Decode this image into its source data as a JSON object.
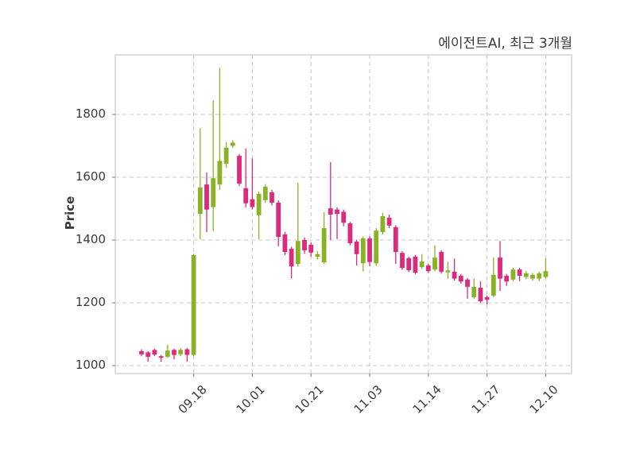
{
  "chart_data": {
    "type": "candlestick",
    "title": "에이전트AI, 최근 3개월",
    "ylabel": "Price",
    "xlabel": "",
    "ylim": [
      975,
      1990
    ],
    "yticks": [
      1000,
      1200,
      1400,
      1600,
      1800
    ],
    "xticks": [
      {
        "label": "09.18",
        "index": 8
      },
      {
        "label": "10.01",
        "index": 17
      },
      {
        "label": "10.21",
        "index": 26
      },
      {
        "label": "11.03",
        "index": 35
      },
      {
        "label": "11.14",
        "index": 44
      },
      {
        "label": "11.27",
        "index": 53
      },
      {
        "label": "12.10",
        "index": 62
      }
    ],
    "grid": true,
    "legend": "none",
    "up_color": "#8bb227",
    "down_color": "#dc2a7c",
    "candles_format": [
      "open",
      "high",
      "low",
      "close"
    ],
    "candles": [
      [
        1046,
        1052,
        1030,
        1036
      ],
      [
        1042,
        1046,
        1012,
        1028
      ],
      [
        1050,
        1054,
        1030,
        1035
      ],
      [
        1030,
        1034,
        1012,
        1025
      ],
      [
        1028,
        1066,
        1024,
        1048
      ],
      [
        1050,
        1054,
        1020,
        1034
      ],
      [
        1036,
        1056,
        1030,
        1050
      ],
      [
        1052,
        1056,
        1012,
        1034
      ],
      [
        1034,
        1356,
        1030,
        1352
      ],
      [
        1483,
        1756,
        1402,
        1567
      ],
      [
        1577,
        1615,
        1425,
        1497
      ],
      [
        1505,
        1845,
        1428,
        1597
      ],
      [
        1577,
        1948,
        1560,
        1652
      ],
      [
        1643,
        1712,
        1630,
        1694
      ],
      [
        1700,
        1718,
        1694,
        1710
      ],
      [
        1668,
        1674,
        1572,
        1580
      ],
      [
        1565,
        1691,
        1504,
        1517
      ],
      [
        1530,
        1660,
        1497,
        1505
      ],
      [
        1479,
        1554,
        1403,
        1547
      ],
      [
        1527,
        1578,
        1518,
        1570
      ],
      [
        1552,
        1560,
        1510,
        1519
      ],
      [
        1519,
        1526,
        1380,
        1410
      ],
      [
        1418,
        1426,
        1352,
        1362
      ],
      [
        1372,
        1378,
        1278,
        1316
      ],
      [
        1324,
        1582,
        1315,
        1397
      ],
      [
        1400,
        1408,
        1356,
        1367
      ],
      [
        1385,
        1392,
        1347,
        1360
      ],
      [
        1347,
        1364,
        1338,
        1355
      ],
      [
        1329,
        1489,
        1324,
        1438
      ],
      [
        1501,
        1648,
        1400,
        1481
      ],
      [
        1497,
        1504,
        1403,
        1483
      ],
      [
        1490,
        1497,
        1444,
        1455
      ],
      [
        1453,
        1458,
        1383,
        1390
      ],
      [
        1395,
        1401,
        1319,
        1355
      ],
      [
        1326,
        1412,
        1300,
        1405
      ],
      [
        1405,
        1412,
        1316,
        1330
      ],
      [
        1326,
        1438,
        1318,
        1430
      ],
      [
        1425,
        1487,
        1418,
        1476
      ],
      [
        1471,
        1481,
        1438,
        1446
      ],
      [
        1441,
        1447,
        1324,
        1362
      ],
      [
        1359,
        1364,
        1305,
        1311
      ],
      [
        1342,
        1347,
        1298,
        1304
      ],
      [
        1347,
        1352,
        1291,
        1296
      ],
      [
        1314,
        1355,
        1308,
        1332
      ],
      [
        1319,
        1324,
        1295,
        1301
      ],
      [
        1306,
        1383,
        1300,
        1344
      ],
      [
        1362,
        1367,
        1293,
        1299
      ],
      [
        1297,
        1331,
        1276,
        1303
      ],
      [
        1299,
        1341,
        1271,
        1277
      ],
      [
        1286,
        1291,
        1261,
        1268
      ],
      [
        1274,
        1279,
        1213,
        1251
      ],
      [
        1218,
        1277,
        1212,
        1251
      ],
      [
        1248,
        1268,
        1199,
        1205
      ],
      [
        1218,
        1223,
        1194,
        1210
      ],
      [
        1223,
        1344,
        1218,
        1289
      ],
      [
        1344,
        1397,
        1238,
        1277
      ],
      [
        1286,
        1292,
        1254,
        1268
      ],
      [
        1274,
        1312,
        1268,
        1306
      ],
      [
        1306,
        1311,
        1269,
        1286
      ],
      [
        1282,
        1301,
        1275,
        1294
      ],
      [
        1277,
        1295,
        1271,
        1289
      ],
      [
        1277,
        1299,
        1269,
        1294
      ],
      [
        1282,
        1341,
        1277,
        1301
      ]
    ]
  }
}
